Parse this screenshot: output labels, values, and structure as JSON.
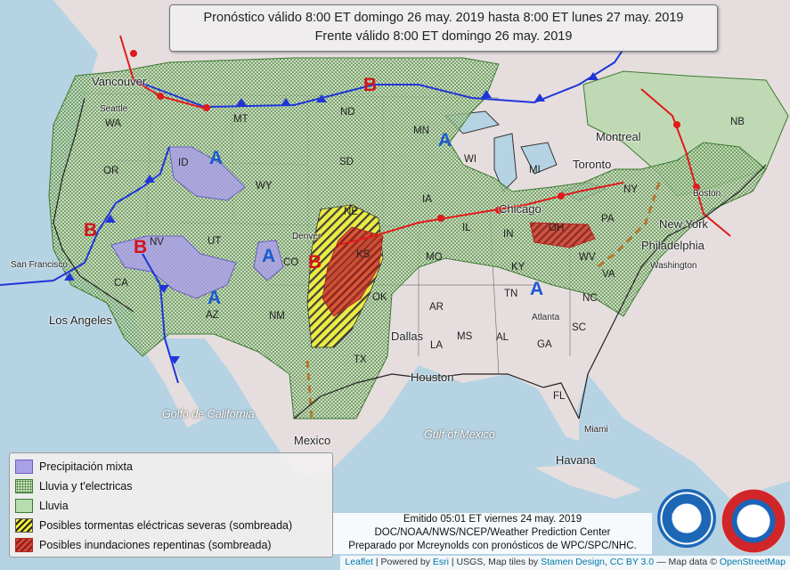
{
  "title": {
    "line1": "Pronóstico válido 8:00 ET domingo 26 may. 2019 hasta 8:00 ET lunes 27 may. 2019",
    "line2": "Frente válido 8:00 ET domingo 26 may. 2019"
  },
  "legend": {
    "mixed": "Precipitación mixta",
    "rain_thunder": "Lluvia y t'electricas",
    "rain": "Lluvia",
    "severe": "Posibles tormentas eléctricas severas (sombreada)",
    "flood": "Posibles inundaciones repentinas (sombreada)"
  },
  "issued": {
    "line1": "Emitido 05:01 ET viernes 24 may. 2019",
    "line2": "DOC/NOAA/NWS/NCEP/Weather Prediction Center",
    "line3": "Preparado por Mcreynolds con pronósticos de WPC/SPC/NHC."
  },
  "attribution": {
    "leaflet": "Leaflet",
    "powered": "| Powered by",
    "esri": "Esri",
    "usgs": "| USGS, Map tiles by",
    "stamen": "Stamen Design",
    "cc": "CC BY 3.0",
    "mapdata": "— Map data ©",
    "osm": "OpenStreetMap"
  },
  "logos": {
    "noaa": "NOAA",
    "nws": "NATIONAL WEATHER SERVICE"
  },
  "cities": {
    "vancouver": "Vancouver",
    "seattle": "Seattle",
    "sanfrancisco": "San Francisco",
    "losangeles": "Los Angeles",
    "dallas": "Dallas",
    "houston": "Houston",
    "mexico": "Mexico",
    "atlanta": "Atlanta",
    "miami": "Miami",
    "habana": "Havana",
    "chicago": "Chicago",
    "toronto": "Toronto",
    "montreal": "Montreal",
    "newyork": "New York",
    "philadelphia": "Philadelphia",
    "washington": "Washington",
    "boston": "Boston",
    "denver": "Denver"
  },
  "water": {
    "gulf_mexico": "Gulf of Mexico",
    "golfo_california": "Golfo de California"
  },
  "states": {
    "wa": "WA",
    "or": "OR",
    "ca": "CA",
    "nv": "NV",
    "id": "ID",
    "mt": "MT",
    "wy": "WY",
    "ut": "UT",
    "co": "CO",
    "az": "AZ",
    "nm": "NM",
    "nd": "ND",
    "sd": "SD",
    "ne": "NE",
    "ks": "KS",
    "ok": "OK",
    "tx": "TX",
    "mn": "MN",
    "ia": "IA",
    "mo": "MO",
    "ar": "AR",
    "la": "LA",
    "ms": "MS",
    "al": "AL",
    "ga": "GA",
    "fl": "FL",
    "sc": "SC",
    "nc": "NC",
    "tn": "TN",
    "ky": "KY",
    "in": "IN",
    "il": "IL",
    "wi": "WI",
    "mi": "MI",
    "oh": "OH",
    "pa": "PA",
    "ny": "NY",
    "va": "VA",
    "wv": "WV",
    "nb": "NB"
  },
  "pressure": {
    "high": "A",
    "low": "B"
  },
  "colors": {
    "rain_green": "#3d7a32",
    "mixed": "#a9a0e6",
    "cold_front": "#1f35d8",
    "warm_front": "#e11a1a",
    "severe": "#f4f03a",
    "flood": "#d6463a"
  }
}
